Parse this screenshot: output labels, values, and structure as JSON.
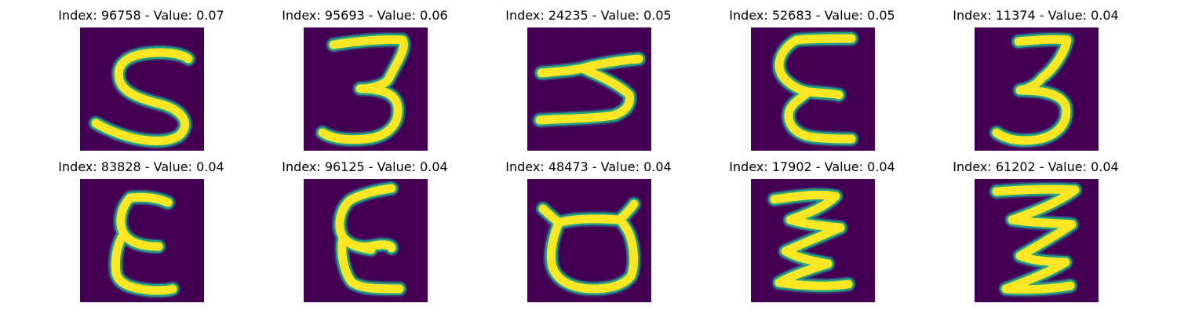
{
  "colors": {
    "background": "#440154",
    "stroke_core": "#FDE725",
    "stroke_edge": "#22A884",
    "stroke_outer": "#31688E"
  },
  "samples": [
    {
      "title": "Index: 96758 - Value: 0.07"
    },
    {
      "title": "Index: 95693 - Value: 0.06"
    },
    {
      "title": "Index: 24235 - Value: 0.05"
    },
    {
      "title": "Index: 52683 - Value: 0.05"
    },
    {
      "title": "Index: 11374 - Value: 0.04"
    },
    {
      "title": "Index: 83828 - Value: 0.04"
    },
    {
      "title": "Index: 96125 - Value: 0.04"
    },
    {
      "title": "Index: 48473 - Value: 0.04"
    },
    {
      "title": "Index: 17902 - Value: 0.04"
    },
    {
      "title": "Index: 61202 - Value: 0.04"
    }
  ]
}
